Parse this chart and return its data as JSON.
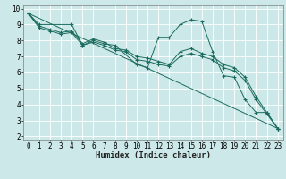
{
  "xlabel": "Humidex (Indice chaleur)",
  "bg_color": "#cce8e8",
  "grid_color": "#ffffff",
  "line_color": "#1a6b5e",
  "xlim": [
    -0.5,
    23.5
  ],
  "ylim": [
    1.8,
    10.2
  ],
  "xticks": [
    0,
    1,
    2,
    3,
    4,
    5,
    6,
    7,
    8,
    9,
    10,
    11,
    12,
    13,
    14,
    15,
    16,
    17,
    18,
    19,
    20,
    21,
    22,
    23
  ],
  "yticks": [
    2,
    3,
    4,
    5,
    6,
    7,
    8,
    9,
    10
  ],
  "lines": [
    {
      "x": [
        0,
        1,
        4,
        5,
        6,
        7,
        8,
        10,
        11,
        12,
        13,
        14,
        15,
        16,
        17,
        18,
        19,
        20,
        21,
        22,
        23
      ],
      "y": [
        9.7,
        9.0,
        9.0,
        7.7,
        8.0,
        7.8,
        7.7,
        6.5,
        6.3,
        8.2,
        8.2,
        9.0,
        9.3,
        9.2,
        7.3,
        5.8,
        5.7,
        4.3,
        3.5,
        3.5,
        2.5
      ]
    },
    {
      "x": [
        0,
        1,
        2,
        3,
        4,
        5,
        6,
        7,
        8,
        9,
        10,
        11,
        12,
        13,
        14,
        15,
        16,
        17,
        18,
        19,
        20,
        21,
        22,
        23
      ],
      "y": [
        9.7,
        8.9,
        8.7,
        8.5,
        8.6,
        7.8,
        8.1,
        7.9,
        7.5,
        7.4,
        7.0,
        6.9,
        6.7,
        6.5,
        7.3,
        7.5,
        7.2,
        7.0,
        6.5,
        6.3,
        5.7,
        4.5,
        3.5,
        2.5
      ]
    },
    {
      "x": [
        0,
        23
      ],
      "y": [
        9.7,
        2.5
      ]
    },
    {
      "x": [
        0,
        1,
        2,
        3,
        4,
        5,
        6,
        7,
        8,
        9,
        10,
        11,
        12,
        13,
        14,
        15,
        16,
        17,
        18,
        19,
        20,
        21,
        22,
        23
      ],
      "y": [
        9.7,
        8.8,
        8.6,
        8.4,
        8.5,
        7.7,
        7.9,
        7.7,
        7.4,
        7.3,
        6.8,
        6.7,
        6.5,
        6.4,
        7.0,
        7.2,
        7.0,
        6.8,
        6.3,
        6.1,
        5.5,
        4.3,
        3.4,
        2.5
      ]
    }
  ],
  "xlabel_fontsize": 6.5,
  "tick_fontsize": 5.5
}
